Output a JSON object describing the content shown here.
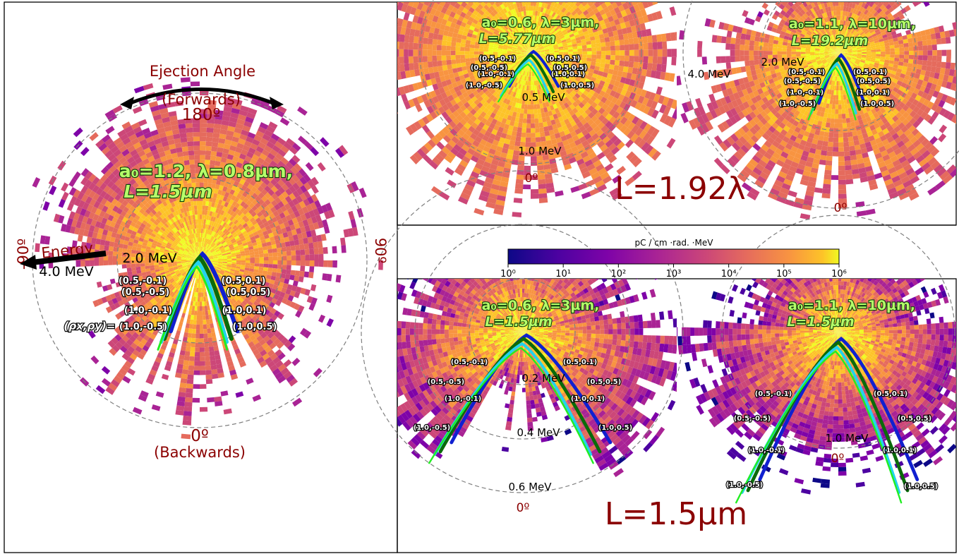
{
  "chart_data": [
    {
      "type": "polar-histogram",
      "panel": "left",
      "title": "a0=1.2, λ=0.8µm, L=1.5µm",
      "params": {
        "a0": "1.2",
        "lambda": "0.8µm",
        "L": "1.5µm"
      },
      "label_lines": [
        "a₀=1.2, λ=0.8µm,",
        "L=1.5µm"
      ],
      "energy_rings": [
        "2.0 MeV",
        "4.0 MeV"
      ],
      "angle_labels": {
        "top": "180º",
        "bottom": "0º",
        "left": "-90º",
        "right": "90º"
      },
      "annotations": {
        "ejection_angle": "Ejection Angle",
        "forwards": "(Forwards)",
        "backwards": "(Backwards)",
        "energy": "Energy",
        "rho_prefix": "(ρx,ρy)="
      },
      "rho_labels": [
        "(0.5,-0.1)",
        "(0.5,-0.5)",
        "(1.0,-0.1)",
        "(1.0,-0.5)",
        "(0.5,0.1)",
        "(0.5,0.5)",
        "(1.0,0.1)",
        "(1.0,0.5)"
      ]
    },
    {
      "type": "polar-histogram",
      "panel": "top-middle",
      "label_lines": [
        "a₀=0.6, λ=3µm,",
        "L=5.77µm"
      ],
      "params": {
        "a0": "0.6",
        "lambda": "3µm",
        "L": "5.77µm"
      },
      "energy_rings": [
        "0.5 MeV",
        "1.0 MeV"
      ],
      "angle_labels": {
        "bottom": "0º"
      },
      "rho_labels": [
        "(0.5,-0.1)",
        "(0.5,-0.5)",
        "(1.0,-0.1)",
        "(1.0,-0.5)",
        "(0.5,0.1)",
        "(0.5,0.5)",
        "(1.0,0.1)",
        "(1.0,0.5)"
      ]
    },
    {
      "type": "polar-histogram",
      "panel": "top-right",
      "label_lines": [
        "a₀=1.1, λ=10µm,",
        "L=19.2µm"
      ],
      "params": {
        "a0": "1.1",
        "lambda": "10µm",
        "L": "19.2µm"
      },
      "energy_rings": [
        "2.0 MeV",
        "4.0 MeV"
      ],
      "angle_labels": {
        "bottom": "0º"
      },
      "rho_labels": [
        "(0.5,-0.1)",
        "(0.5,-0.5)",
        "(1.0,-0.1)",
        "(1.0,-0.5)",
        "(0.5,0.1)",
        "(0.5,0.5)",
        "(1.0,0.1)",
        "(1.0,0.5)"
      ]
    },
    {
      "type": "polar-histogram",
      "panel": "bottom-middle",
      "label_lines": [
        "a₀=0.6, λ=3µm,",
        "L=1.5µm"
      ],
      "params": {
        "a0": "0.6",
        "lambda": "3µm",
        "L": "1.5µm"
      },
      "energy_rings": [
        "0.2 MeV",
        "0.4 MeV",
        "0.6 MeV"
      ],
      "angle_labels": {
        "bottom": "0º"
      },
      "rho_labels": [
        "(0.5,-0.1)",
        "(0.5,-0.5)",
        "(1.0,-0.1)",
        "(1.0,-0.5)",
        "(0.5,0.1)",
        "(0.5,0.5)",
        "(1.0,0.1)",
        "(1.0,0.5)"
      ]
    },
    {
      "type": "polar-histogram",
      "panel": "bottom-right",
      "label_lines": [
        "a₀=1.1, λ=10µm,",
        "L=1.5µm"
      ],
      "params": {
        "a0": "1.1",
        "lambda": "10µm",
        "L": "1.5µm"
      },
      "energy_rings": [
        "1.0 MeV"
      ],
      "angle_labels": {
        "bottom": "0º"
      },
      "rho_labels": [
        "(0.5,-0.1)",
        "(0.5,-0.5)",
        "(1.0,-0.1)",
        "(1.0,-0.5)",
        "(0.5,0.1)",
        "(0.5,0.5)",
        "(1.0,0.1)",
        "(1.0,0.5)"
      ]
    }
  ],
  "group_labels": {
    "top": "L=1.92λ",
    "bottom": "L=1.5µm"
  },
  "colorbar": {
    "title": "pC / cm ·rad. ·MeV",
    "scale": "log",
    "range": [
      1,
      1000000
    ],
    "ticks": [
      "10⁰",
      "10¹",
      "10²",
      "10³",
      "10⁴",
      "10⁵",
      "10⁶"
    ],
    "colormap": "plasma"
  },
  "curve_colors": {
    "blue": "#1020d0",
    "cyan": "#22d3ee",
    "green": "#22ee22",
    "darkgreen": "#0a6b0a"
  }
}
